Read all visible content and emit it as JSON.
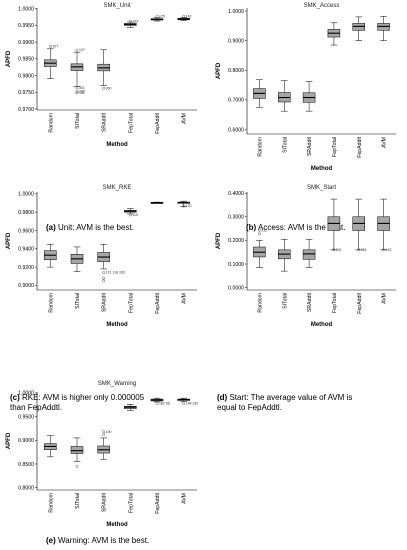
{
  "captions": [
    {
      "letter": "(a)",
      "text": "Unit: AVM is the best."
    },
    {
      "letter": "(b)",
      "text": "Access: AVM is the best."
    },
    {
      "letter": "(c)",
      "lines": [
        "RKE: AVM is higher only 0.000005",
        "than FepAddtl."
      ]
    },
    {
      "letter": "(d)",
      "lines": [
        "Start: The average value of AVM is",
        "equal to FepAddtl."
      ]
    },
    {
      "letter": "(e)",
      "text": "Warning: AVM is the best."
    }
  ],
  "chart_data": [
    {
      "type": "box",
      "title": "SMK_Unit",
      "xlabel": "Method",
      "ylabel": "APFD",
      "categories": [
        "Random",
        "SITotal",
        "SRAddtl",
        "FepTotal",
        "FepAddtl",
        "AVM"
      ],
      "yticks": [
        "0.9700",
        "0.9750",
        "0.9800",
        "0.9850",
        "0.9900",
        "0.9950",
        "1.0000"
      ],
      "ylim": [
        0.9697,
        1.0002
      ],
      "boxes": [
        {
          "min": 0.9791,
          "q1": 0.9827,
          "median": 0.9837,
          "q3": 0.9847,
          "max": 0.988
        },
        {
          "min": 0.9768,
          "q1": 0.9815,
          "median": 0.9826,
          "q3": 0.9835,
          "max": 0.987
        },
        {
          "min": 0.977,
          "q1": 0.9814,
          "median": 0.9823,
          "q3": 0.9834,
          "max": 0.9877
        },
        {
          "min": 0.9944,
          "q1": 0.995,
          "median": 0.9953,
          "q3": 0.9956,
          "max": 0.996
        },
        {
          "min": 0.9963,
          "q1": 0.9966,
          "median": 0.9968,
          "q3": 0.997,
          "max": 0.9973
        },
        {
          "min": 0.9964,
          "q1": 0.9967,
          "median": 0.9969,
          "q3": 0.9971,
          "max": 0.9973
        }
      ],
      "outliers": [
        {
          "cat": 0,
          "value": 0.9887,
          "label": "207"
        },
        {
          "cat": 1,
          "value": 0.9876,
          "label": "137"
        },
        {
          "cat": 1,
          "value": 0.9763,
          "label": "341"
        },
        {
          "cat": 1,
          "value": 0.9752,
          "label": "283"
        },
        {
          "cat": 1,
          "value": 0.9748,
          "label": "161"
        },
        {
          "cat": 2,
          "value": 0.9762,
          "label": "300"
        },
        {
          "cat": 3,
          "value": 0.9962,
          "label": "169"
        },
        {
          "cat": 4,
          "value": 0.9976,
          "label": "125"
        },
        {
          "cat": 5,
          "value": 0.9977,
          "label": "142"
        }
      ]
    },
    {
      "type": "box",
      "title": "SMK_Access",
      "xlabel": "Method",
      "ylabel": "APFD",
      "categories": [
        "Random",
        "SITotal",
        "SRAddtl",
        "FepTotal",
        "FepAddtl",
        "AVM"
      ],
      "yticks": [
        "0.6000",
        "0.7000",
        "0.8000",
        "0.9000",
        "1.0000"
      ],
      "ylim": [
        0.585,
        1.01
      ],
      "boxes": [
        {
          "min": 0.675,
          "q1": 0.705,
          "median": 0.722,
          "q3": 0.738,
          "max": 0.768
        },
        {
          "min": 0.662,
          "q1": 0.693,
          "median": 0.708,
          "q3": 0.725,
          "max": 0.765
        },
        {
          "min": 0.662,
          "q1": 0.692,
          "median": 0.708,
          "q3": 0.724,
          "max": 0.762
        },
        {
          "min": 0.885,
          "q1": 0.912,
          "median": 0.925,
          "q3": 0.938,
          "max": 0.96
        },
        {
          "min": 0.9,
          "q1": 0.935,
          "median": 0.948,
          "q3": 0.958,
          "max": 0.98
        },
        {
          "min": 0.9,
          "q1": 0.935,
          "median": 0.948,
          "q3": 0.958,
          "max": 0.982
        }
      ],
      "outliers": []
    },
    {
      "type": "box",
      "title": "SMK_RKE",
      "xlabel": "Method",
      "ylabel": "APFD",
      "categories": [
        "Random",
        "SITotal",
        "SRAddtl",
        "FepTotal",
        "FepAddtl",
        "AVM"
      ],
      "yticks": [
        "0.9000",
        "0.9200",
        "0.9400",
        "0.9600",
        "0.9800",
        "1.0000"
      ],
      "ylim": [
        0.895,
        1.002
      ],
      "boxes": [
        {
          "min": 0.92,
          "q1": 0.928,
          "median": 0.933,
          "q3": 0.938,
          "max": 0.945
        },
        {
          "min": 0.915,
          "q1": 0.924,
          "median": 0.929,
          "q3": 0.934,
          "max": 0.942
        },
        {
          "min": 0.918,
          "q1": 0.926,
          "median": 0.931,
          "q3": 0.936,
          "max": 0.945
        },
        {
          "min": 0.978,
          "q1": 0.98,
          "median": 0.981,
          "q3": 0.982,
          "max": 0.984
        },
        {
          "min": 0.9895,
          "q1": 0.99,
          "median": 0.9903,
          "q3": 0.9906,
          "max": 0.991
        },
        {
          "min": 0.986,
          "q1": 0.9896,
          "median": 0.9903,
          "q3": 0.991,
          "max": 0.992
        }
      ],
      "outliers": [
        {
          "cat": 2,
          "value": 0.914,
          "label": "121 118 183"
        },
        {
          "cat": 2,
          "value": 0.908,
          "label": ""
        },
        {
          "cat": 2,
          "value": 0.905,
          "label": ""
        },
        {
          "cat": 3,
          "value": 0.977,
          "label": "110"
        },
        {
          "cat": 5,
          "value": 0.9865,
          "label": "120"
        }
      ]
    },
    {
      "type": "box",
      "title": "SMK_Start",
      "xlabel": "Method",
      "ylabel": "APFD",
      "categories": [
        "Random",
        "SITotal",
        "SRAddtl",
        "FepTotal",
        "FepAddtl",
        "AVM"
      ],
      "yticks": [
        "0.0000",
        "0.1000",
        "0.2000",
        "0.3000",
        "0.4000"
      ],
      "ylim": [
        -0.01,
        0.405
      ],
      "boxes": [
        {
          "min": 0.085,
          "q1": 0.13,
          "median": 0.15,
          "q3": 0.172,
          "max": 0.2
        },
        {
          "min": 0.07,
          "q1": 0.122,
          "median": 0.142,
          "q3": 0.16,
          "max": 0.205
        },
        {
          "min": 0.085,
          "q1": 0.12,
          "median": 0.143,
          "q3": 0.16,
          "max": 0.205
        },
        {
          "min": 0.16,
          "q1": 0.242,
          "median": 0.272,
          "q3": 0.3,
          "max": 0.375
        },
        {
          "min": 0.16,
          "q1": 0.242,
          "median": 0.272,
          "q3": 0.3,
          "max": 0.375
        },
        {
          "min": 0.16,
          "q1": 0.242,
          "median": 0.272,
          "q3": 0.3,
          "max": 0.375
        }
      ],
      "outliers": [
        {
          "cat": 0,
          "value": 0.243,
          "label": "212"
        },
        {
          "cat": 0,
          "value": 0.228,
          "label": ""
        },
        {
          "cat": 3,
          "value": 0.16,
          "label": "201"
        },
        {
          "cat": 4,
          "value": 0.16,
          "label": "381"
        },
        {
          "cat": 5,
          "value": 0.16,
          "label": "193"
        }
      ]
    },
    {
      "type": "box",
      "title": "SMK_Warning",
      "xlabel": "Method",
      "ylabel": "APFD",
      "categories": [
        "Random",
        "SITotal",
        "SRAddtl",
        "FepTotal",
        "FepAddtl",
        "AVM"
      ],
      "yticks": [
        "0.8000",
        "0.8500",
        "0.9000",
        "0.9500",
        "1.0000"
      ],
      "ylim": [
        0.795,
        1.002
      ],
      "boxes": [
        {
          "min": 0.865,
          "q1": 0.88,
          "median": 0.887,
          "q3": 0.893,
          "max": 0.91
        },
        {
          "min": 0.855,
          "q1": 0.872,
          "median": 0.878,
          "q3": 0.887,
          "max": 0.905
        },
        {
          "min": 0.86,
          "q1": 0.873,
          "median": 0.88,
          "q3": 0.888,
          "max": 0.905
        },
        {
          "min": 0.963,
          "q1": 0.967,
          "median": 0.97,
          "q3": 0.972,
          "max": 0.976
        },
        {
          "min": 0.981,
          "q1": 0.983,
          "median": 0.985,
          "q3": 0.987,
          "max": 0.989
        },
        {
          "min": 0.982,
          "q1": 0.984,
          "median": 0.986,
          "q3": 0.987,
          "max": 0.989
        }
      ],
      "outliers": [
        {
          "cat": 1,
          "value": 0.845,
          "label": ""
        },
        {
          "cat": 2,
          "value": 0.918,
          "label": "190"
        },
        {
          "cat": 2,
          "value": 0.912,
          "label": ""
        },
        {
          "cat": 4,
          "value": 0.978,
          "label": "182 88"
        },
        {
          "cat": 5,
          "value": 0.978,
          "label": "148 180"
        }
      ]
    }
  ]
}
